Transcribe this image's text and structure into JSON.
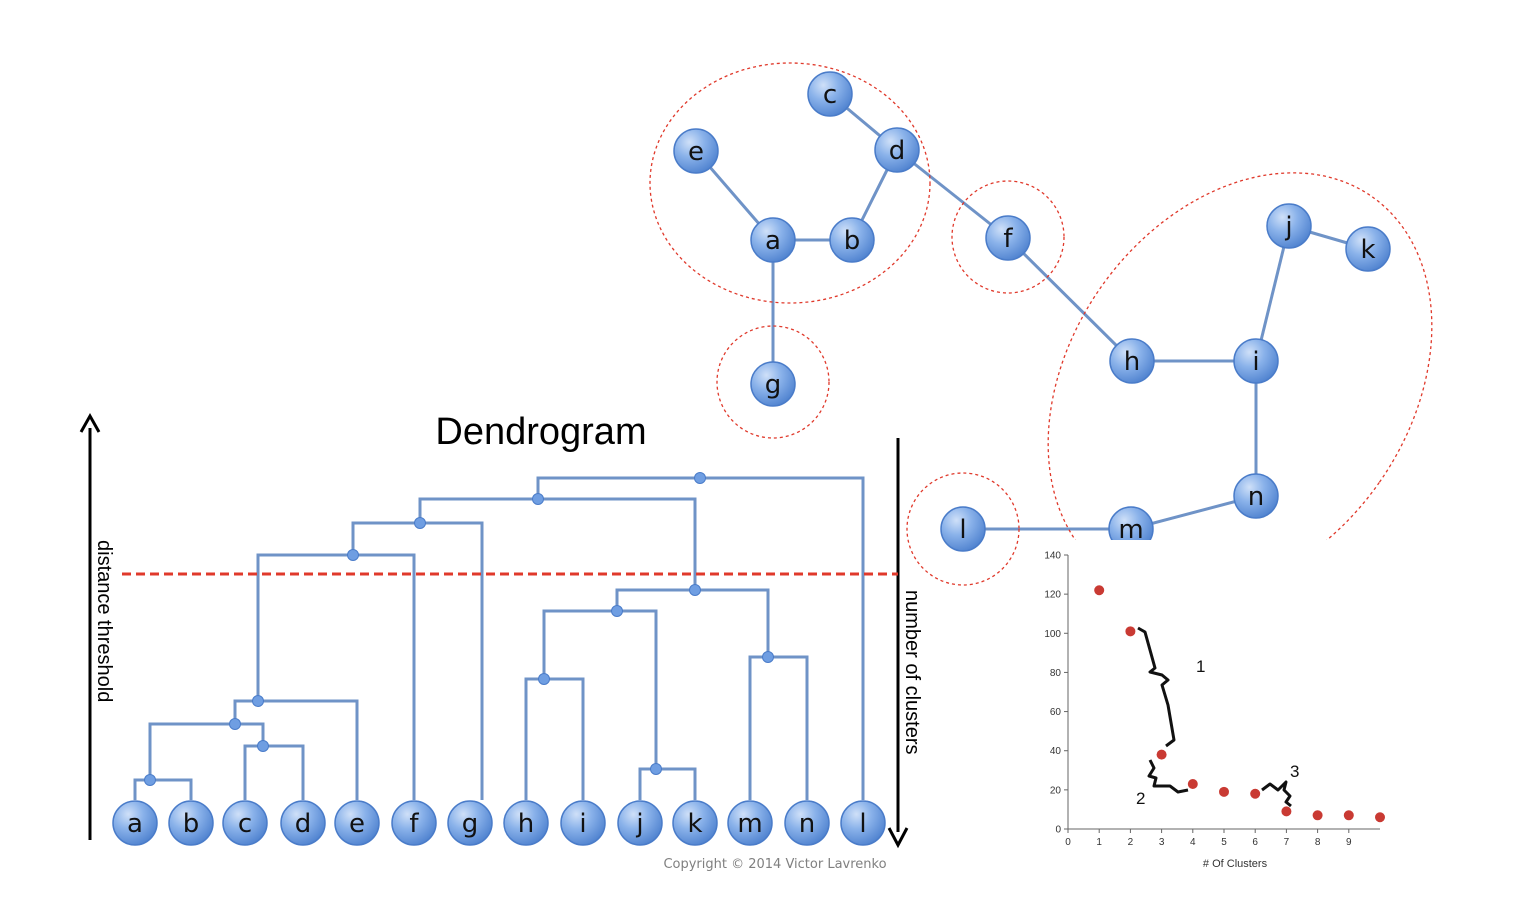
{
  "colors": {
    "node_fill": "#6f9ee2",
    "node_fill_light": "#a9c8f2",
    "node_stroke": "#4a7cc9",
    "edge": "#6f93c7",
    "cluster_ring": "#e0392b",
    "threshold": "#e0392b",
    "elbow_point": "#c93a33"
  },
  "graph": {
    "nodes": [
      "a",
      "b",
      "c",
      "d",
      "e",
      "f",
      "g",
      "h",
      "i",
      "j",
      "k",
      "l",
      "m",
      "n"
    ],
    "edges": [
      [
        "a",
        "e"
      ],
      [
        "a",
        "b"
      ],
      [
        "b",
        "d"
      ],
      [
        "d",
        "c"
      ],
      [
        "d",
        "f"
      ],
      [
        "a",
        "g"
      ],
      [
        "f",
        "h"
      ],
      [
        "h",
        "i"
      ],
      [
        "i",
        "j"
      ],
      [
        "j",
        "k"
      ],
      [
        "i",
        "n"
      ],
      [
        "n",
        "m"
      ],
      [
        "m",
        "l"
      ]
    ]
  },
  "dendrogram": {
    "title": "Dendrogram",
    "left_axis_label": "distance threshold",
    "right_axis_label": "number of clusters",
    "leaves": [
      "a",
      "b",
      "c",
      "d",
      "e",
      "f",
      "g",
      "h",
      "i",
      "j",
      "k",
      "m",
      "n",
      "l"
    ]
  },
  "copyright": "Copyright © 2014 Victor Lavrenko",
  "chart_data": {
    "type": "scatter",
    "x": [
      1,
      2,
      3,
      4,
      5,
      6,
      7,
      8,
      9,
      10
    ],
    "y": [
      122,
      101,
      38,
      23,
      19,
      18,
      9,
      7,
      7,
      6
    ],
    "xlabel": "# Of Clusters",
    "xlim": [
      0,
      10
    ],
    "ylim": [
      0,
      140
    ],
    "xticks": [
      "0",
      "1",
      "2",
      "3",
      "4",
      "5",
      "6",
      "7",
      "8",
      "9"
    ],
    "yticks": [
      "0",
      "20",
      "40",
      "60",
      "80",
      "100",
      "120",
      "140"
    ],
    "annotations": [
      "1",
      "2",
      "3"
    ]
  }
}
